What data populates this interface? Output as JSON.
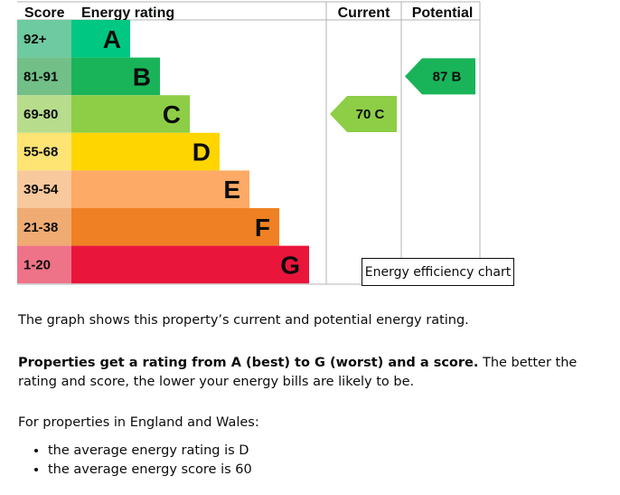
{
  "chart_data": {
    "type": "bar",
    "headers": {
      "score": "Score",
      "rating": "Energy rating",
      "current": "Current",
      "potential": "Potential"
    },
    "bands": [
      {
        "range": "92+",
        "letter": "A",
        "color": "#00c781",
        "score_color": "#6ecaa0"
      },
      {
        "range": "81-91",
        "letter": "B",
        "color": "#19b459",
        "score_color": "#72bf88"
      },
      {
        "range": "69-80",
        "letter": "C",
        "color": "#8dce46",
        "score_color": "#b7dc8c"
      },
      {
        "range": "55-68",
        "letter": "D",
        "color": "#ffd500",
        "score_color": "#fde473"
      },
      {
        "range": "39-54",
        "letter": "E",
        "color": "#fcaa65",
        "score_color": "#f8c99c"
      },
      {
        "range": "21-38",
        "letter": "F",
        "color": "#ef8023",
        "score_color": "#f0ab72"
      },
      {
        "range": "1-20",
        "letter": "G",
        "color": "#e9153b",
        "score_color": "#ef7388"
      }
    ],
    "current": {
      "score": 70,
      "rating": "C",
      "label": "70 C",
      "color": "#8dce46"
    },
    "potential": {
      "score": 87,
      "rating": "B",
      "label": "87 B",
      "color": "#19b459"
    }
  },
  "tooltip": "Energy efficiency chart",
  "text": {
    "p1": "The graph shows this property’s current and potential energy rating.",
    "p2_bold": "Properties get a rating from A (best) to G (worst) and a score.",
    "p2_rest": " The better the rating and score, the lower your energy bills are likely to be.",
    "p3": "For properties in England and Wales:",
    "bullets": [
      "the average energy rating is D",
      "the average energy score is 60"
    ]
  }
}
